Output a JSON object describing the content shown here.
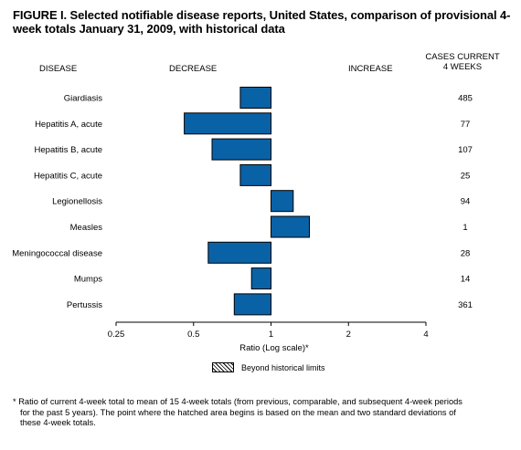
{
  "title": "FIGURE I. Selected notifiable disease reports, United States, comparison of provisional 4-week totals January 31, 2009, with historical data",
  "headers": {
    "disease": "DISEASE",
    "decrease": "DECREASE",
    "increase": "INCREASE",
    "cases_line1": "CASES CURRENT",
    "cases_line2": "4 WEEKS"
  },
  "legend": {
    "label": "Beyond historical limits"
  },
  "footnote": {
    "line1": "* Ratio of current 4-week total to mean of 15 4-week totals (from previous, comparable, and subsequent 4-week periods",
    "line2": "for the past 5 years). The point where the hatched area begins is based on the mean and two standard deviations of",
    "line3": "these 4-week totals."
  },
  "chart_data": {
    "type": "bar",
    "orientation": "horizontal",
    "xlabel": "Ratio (Log scale)*",
    "xscale": "log",
    "xlim": [
      0.25,
      4
    ],
    "xticks": [
      0.25,
      0.5,
      1,
      2,
      4
    ],
    "xtick_labels": [
      "0.25",
      "0.5",
      "1",
      "2",
      "4"
    ],
    "baseline": 1,
    "bar_color": "#0a62a6",
    "categories": [
      "Giardiasis",
      "Hepatitis A, acute",
      "Hepatitis B, acute",
      "Hepatitis C, acute",
      "Legionellosis",
      "Measles",
      "Meningococcal disease",
      "Mumps",
      "Pertussis"
    ],
    "values": [
      0.76,
      0.46,
      0.59,
      0.76,
      1.22,
      1.41,
      0.57,
      0.84,
      0.72
    ],
    "cases_current_4_weeks": [
      "485",
      "77",
      "107",
      "25",
      "94",
      "1",
      "28",
      "14",
      "361"
    ]
  }
}
